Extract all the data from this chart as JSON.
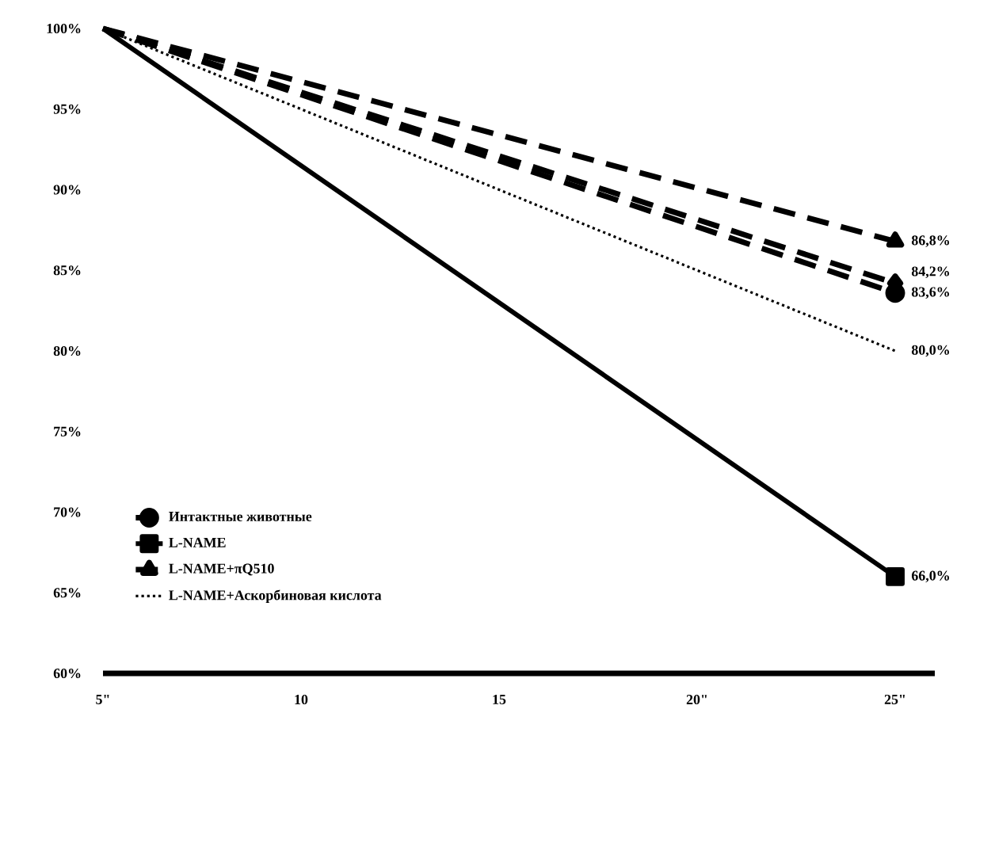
{
  "chart_data": {
    "type": "line",
    "x": [
      5,
      25
    ],
    "xlim": [
      5,
      26
    ],
    "xticks": [
      {
        "value": 5,
        "label": "5\""
      },
      10,
      15,
      {
        "value": 20,
        "label": "20\""
      },
      {
        "value": 25,
        "label": "25\""
      }
    ],
    "ylim": [
      60,
      100
    ],
    "yticks": [
      {
        "value": 60,
        "label": "60%"
      },
      {
        "value": 65,
        "label": "65%"
      },
      {
        "value": 70,
        "label": "70%"
      },
      {
        "value": 75,
        "label": "75%"
      },
      {
        "value": 80,
        "label": "80%"
      },
      {
        "value": 85,
        "label": "85%"
      },
      {
        "value": 90,
        "label": "90%"
      },
      {
        "value": 95,
        "label": "95%"
      },
      {
        "value": 100,
        "label": "100%"
      }
    ],
    "grid": false,
    "legend": "bottom left",
    "series": [
      {
        "name": "Интактные животные",
        "color": "#000000",
        "marker": "circle",
        "line_style": "dashed",
        "values": [
          100,
          83.6
        ],
        "value_labels": [
          null,
          "83,6%"
        ]
      },
      {
        "name": "L-NAME",
        "color": "#000000",
        "marker": "square",
        "line_style": "solid",
        "values": [
          100,
          66.0
        ],
        "value_labels": [
          null,
          "66,0%"
        ]
      },
      {
        "name": "L-NAME+πQ510",
        "color": "#000000",
        "marker": "triangle",
        "line_style": "dashed",
        "values": [
          100,
          86.8
        ],
        "value_labels": [
          null,
          "86,8%"
        ]
      },
      {
        "name": "L-NAME+Аскорбиновая кислота",
        "color": "#000000",
        "marker": "none",
        "line_style": "dotted",
        "values": [
          100,
          80.0
        ],
        "value_labels": [
          null,
          "80,0%"
        ]
      },
      {
        "color": "#000000",
        "marker": "diamond",
        "line_style": "dashed",
        "values": [
          100,
          84.2
        ],
        "value_labels": [
          null,
          "84,2%"
        ]
      }
    ]
  }
}
